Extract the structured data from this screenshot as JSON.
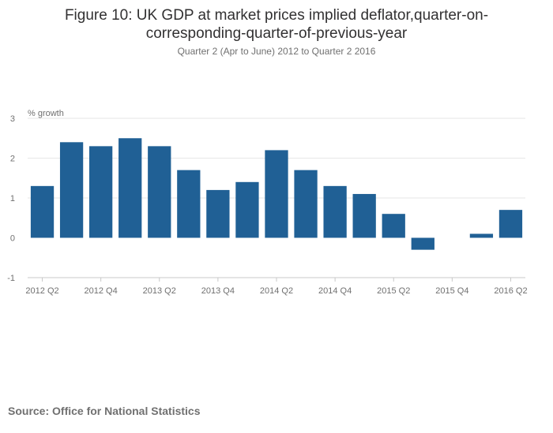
{
  "chart_data": {
    "type": "bar",
    "title_lines": [
      "Figure 10: UK GDP at market prices implied deflator,quarter-on-",
      "corresponding-quarter-of-previous-year"
    ],
    "subtitle": "Quarter 2 (Apr to June) 2012 to Quarter 2 2016",
    "ylabel": "% growth",
    "xlabel": "",
    "ylim": [
      -1,
      3
    ],
    "yticks": [
      -1,
      0,
      1,
      2,
      3
    ],
    "grid": true,
    "legend": "none",
    "bar_color": "#206095",
    "categories": [
      "2012 Q2",
      "2012 Q3",
      "2012 Q4",
      "2013 Q1",
      "2013 Q2",
      "2013 Q3",
      "2013 Q4",
      "2014 Q1",
      "2014 Q2",
      "2014 Q3",
      "2014 Q4",
      "2015 Q1",
      "2015 Q2",
      "2015 Q3",
      "2015 Q4",
      "2016 Q1",
      "2016 Q2"
    ],
    "tick_labels": [
      "2012 Q2",
      "2012 Q4",
      "2013 Q2",
      "2013 Q4",
      "2014 Q2",
      "2014 Q4",
      "2015 Q2",
      "2015 Q4",
      "2016 Q2"
    ],
    "values": [
      1.3,
      2.4,
      2.3,
      2.5,
      2.3,
      1.7,
      1.2,
      1.4,
      2.2,
      1.7,
      1.3,
      1.1,
      0.6,
      -0.3,
      0.0,
      0.1,
      0.7
    ]
  },
  "source": "Source: Office for National Statistics"
}
